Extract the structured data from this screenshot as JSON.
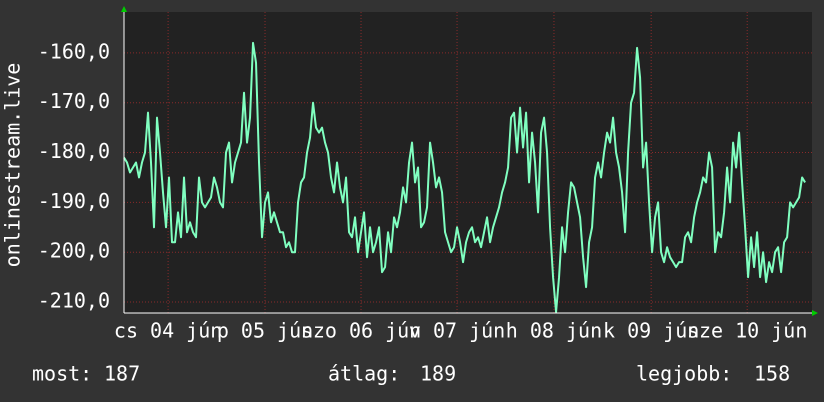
{
  "chart_data": {
    "type": "line",
    "y_axis_label": "onlinestream.live",
    "xlim": [
      0,
      229.3
    ],
    "ylim": [
      -212.2,
      -151.8
    ],
    "xticks": [
      {
        "value": 14.7,
        "label": "cs 04 jún"
      },
      {
        "value": 47,
        "label": "p 05 jún"
      },
      {
        "value": 79,
        "label": "szo 06 jún"
      },
      {
        "value": 111,
        "label": "v 07 jún"
      },
      {
        "value": 143.3,
        "label": "h 08 jún"
      },
      {
        "value": 175.7,
        "label": "k 09 jún"
      },
      {
        "value": 207.7,
        "label": "sze 10 jún"
      }
    ],
    "yticks": [
      {
        "value": -210,
        "label": "-210,0"
      },
      {
        "value": -200,
        "label": "-200,0"
      },
      {
        "value": -190,
        "label": "-190,0"
      },
      {
        "value": -180,
        "label": "-180,0"
      },
      {
        "value": -170,
        "label": "-170,0"
      },
      {
        "value": -160,
        "label": "-160,0"
      }
    ],
    "grid": true,
    "x": [
      0,
      1,
      2,
      3,
      4,
      5,
      6,
      7,
      8,
      9,
      10,
      11,
      12,
      13,
      14,
      15,
      16,
      17,
      18,
      19,
      20,
      21,
      22,
      23,
      24,
      25,
      26,
      27,
      28,
      29,
      30,
      31,
      32,
      33,
      34,
      35,
      36,
      37,
      38,
      39,
      40,
      41,
      42,
      43,
      44,
      45,
      46,
      47,
      48,
      49,
      50,
      51,
      52,
      53,
      54,
      55,
      56,
      57,
      58,
      59,
      60,
      61,
      62,
      63,
      64,
      65,
      66,
      67,
      68,
      69,
      70,
      71,
      72,
      73,
      74,
      75,
      76,
      77,
      78,
      79,
      80,
      81,
      82,
      83,
      84,
      85,
      86,
      87,
      88,
      89,
      90,
      91,
      92,
      93,
      94,
      95,
      96,
      97,
      98,
      99,
      100,
      101,
      102,
      103,
      104,
      105,
      106,
      107,
      108,
      109,
      110,
      111,
      112,
      113,
      114,
      115,
      116,
      117,
      118,
      119,
      120,
      121,
      122,
      123,
      124,
      125,
      126,
      127,
      128,
      129,
      130,
      131,
      132,
      133,
      134,
      135,
      136,
      137,
      138,
      139,
      140,
      141,
      142,
      143,
      144,
      145,
      146,
      147,
      148,
      149,
      150,
      151,
      152,
      153,
      154,
      155,
      156,
      157,
      158,
      159,
      160,
      161,
      162,
      163,
      164,
      165,
      166,
      167,
      168,
      169,
      170,
      171,
      172,
      173,
      174,
      175,
      176,
      177,
      178,
      179,
      180,
      181,
      182,
      183,
      184,
      185,
      186,
      187,
      188,
      189,
      190,
      191,
      192,
      193,
      194,
      195,
      196,
      197,
      198,
      199,
      200,
      201,
      202,
      203,
      204,
      205,
      206,
      207,
      208,
      209,
      210,
      211,
      212,
      213,
      214,
      215,
      216,
      217,
      218,
      219,
      220,
      221,
      222,
      223,
      224,
      225,
      226,
      227
    ],
    "series": [
      {
        "color": "#80ffc0",
        "values": [
          -181,
          -182,
          -184,
          -183,
          -182,
          -185,
          -182,
          -180,
          -172,
          -182,
          -195,
          -173,
          -180,
          -188,
          -195,
          -185,
          -198,
          -198,
          -192,
          -197,
          -185,
          -196,
          -194,
          -196,
          -197,
          -185,
          -190,
          -191,
          -190,
          -189,
          -185,
          -187,
          -190,
          -191,
          -180,
          -178,
          -186,
          -182,
          -180,
          -178,
          -168,
          -178,
          -173,
          -158,
          -162,
          -182,
          -197,
          -190,
          -188,
          -194,
          -192,
          -194,
          -196,
          -196,
          -199,
          -198,
          -200,
          -200,
          -190,
          -186,
          -185,
          -180,
          -177,
          -170,
          -175,
          -176,
          -175,
          -178,
          -180,
          -185,
          -188,
          -182,
          -187,
          -190,
          -185,
          -196,
          -197,
          -193,
          -200,
          -196,
          -192,
          -201,
          -195,
          -200,
          -198,
          -195,
          -204,
          -203,
          -196,
          -200,
          -193,
          -195,
          -192,
          -187,
          -190,
          -182,
          -178,
          -186,
          -183,
          -195,
          -194,
          -191,
          -178,
          -182,
          -187,
          -185,
          -188,
          -196,
          -198,
          -200,
          -199,
          -195,
          -198,
          -202,
          -198,
          -196,
          -195,
          -198,
          -197,
          -199,
          -196,
          -193,
          -198,
          -195,
          -193,
          -191,
          -188,
          -186,
          -183,
          -173,
          -172,
          -180,
          -171,
          -179,
          -172,
          -186,
          -176,
          -182,
          -192,
          -176,
          -173,
          -180,
          -195,
          -205,
          -212,
          -205,
          -195,
          -200,
          -192,
          -186,
          -187,
          -190,
          -193,
          -201,
          -207,
          -198,
          -195,
          -185,
          -182,
          -185,
          -180,
          -176,
          -178,
          -173,
          -180,
          -183,
          -188,
          -196,
          -180,
          -170,
          -168,
          -159,
          -165,
          -183,
          -178,
          -190,
          -200,
          -193,
          -190,
          -200,
          -202,
          -199,
          -201,
          -202,
          -203,
          -202,
          -202,
          -197,
          -196,
          -198,
          -193,
          -190,
          -188,
          -185,
          -186,
          -180,
          -183,
          -200,
          -196,
          -197,
          -192,
          -183,
          -190,
          -178,
          -183,
          -176,
          -186,
          -195,
          -205,
          -197,
          -203,
          -196,
          -205,
          -200,
          -206,
          -202,
          -204,
          -200,
          -199,
          -204,
          -198,
          -197,
          -190,
          -191,
          -190,
          -189,
          -185,
          -186
        ]
      }
    ]
  },
  "stats": [
    {
      "label": "most:",
      "value": 187
    },
    {
      "label": "átlag:",
      "value": 189
    },
    {
      "label": "legjobb:",
      "value": 158
    }
  ]
}
